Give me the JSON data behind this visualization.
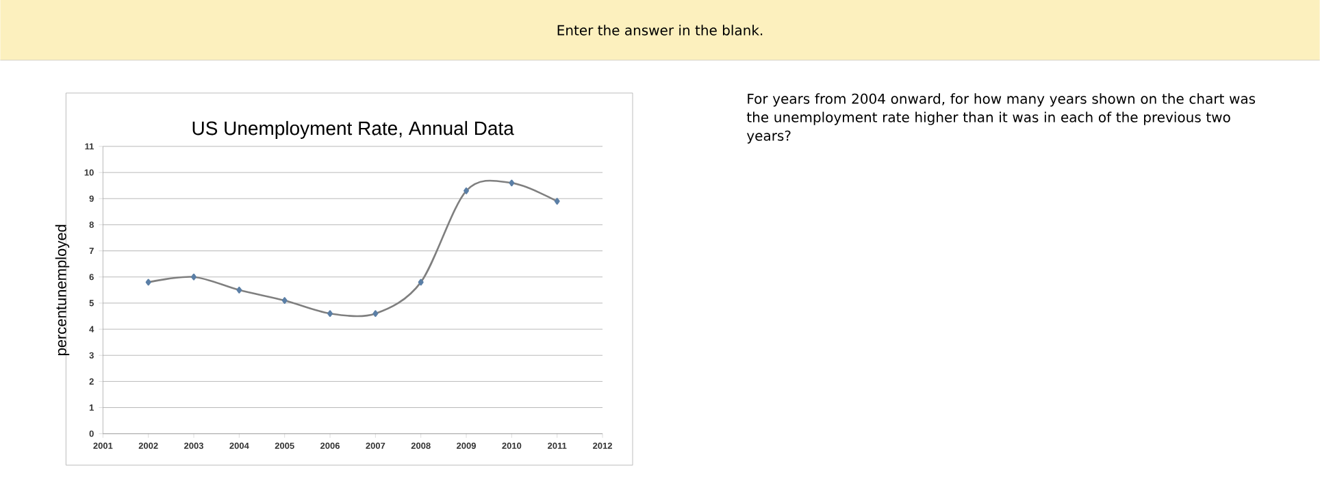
{
  "chart_data": {
    "type": "line",
    "title": "US Unemployment Rate, Annual Data",
    "ylabel": "percentunemployed",
    "x": [
      2002,
      2003,
      2004,
      2005,
      2006,
      2007,
      2008,
      2009,
      2010,
      2011
    ],
    "series": [
      {
        "color": "#7f7f7f",
        "values": [
          5.8,
          6.0,
          5.5,
          5.1,
          4.6,
          4.6,
          5.8,
          9.3,
          9.6,
          8.9
        ]
      }
    ],
    "xlim": [
      2001,
      2012
    ],
    "xticks": [
      2001,
      2002,
      2003,
      2004,
      2005,
      2006,
      2007,
      2008,
      2009,
      2010,
      2011,
      2012
    ],
    "ylim": [
      0,
      11
    ],
    "yticks": [
      0,
      1,
      2,
      3,
      4,
      5,
      6,
      7,
      8,
      9,
      10,
      11
    ],
    "grid": "y",
    "marker": "diamond",
    "line_style": "solid",
    "annotations": [
      "Enter the answer in the blank.",
      "For years from 2004 onward, for how many years shown on the chart was the unemployment rate higher than it was in each of the previous two years?"
    ]
  }
}
